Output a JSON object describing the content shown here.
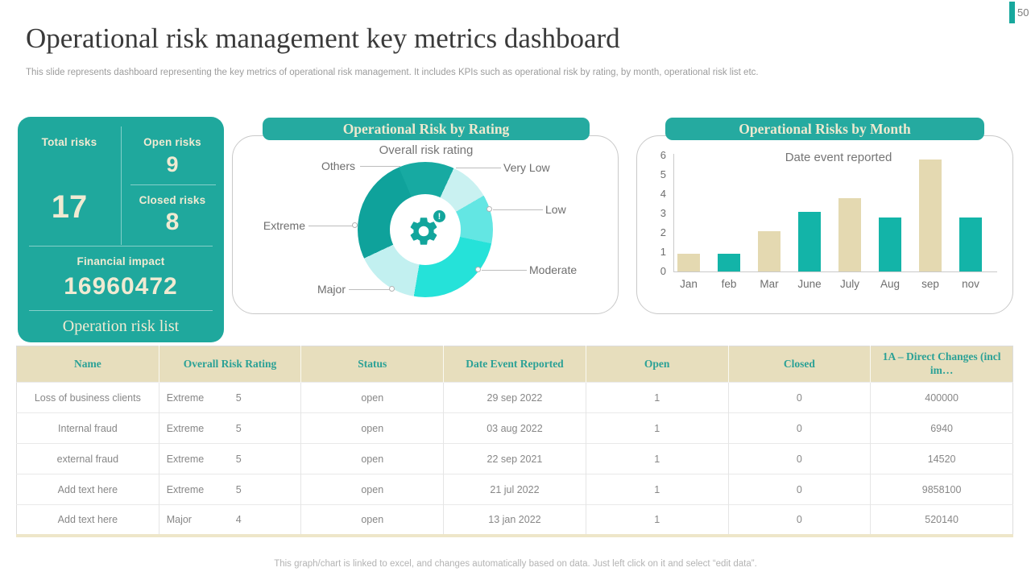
{
  "page": {
    "number": "50"
  },
  "header": {
    "title": "Operational risk management key metrics dashboard",
    "subtitle": "This slide represents dashboard representing the key metrics of operational risk management. It includes KPIs such as operational risk by rating, by month, operational risk list etc."
  },
  "kpi_panel": {
    "total_risks_label": "Total risks",
    "total_risks_value": "17",
    "open_risks_label": "Open risks",
    "open_risks_value": "9",
    "closed_risks_label": "Closed risks",
    "closed_risks_value": "8",
    "financial_impact_label": "Financial impact",
    "financial_impact_value": "16960472",
    "list_title": "Operation risk list"
  },
  "colors": {
    "teal": "#1fa89d",
    "band_teal": "#25aaa0",
    "cream": "#f0ead2",
    "table_header_bg": "#e7debd",
    "bar_beige": "#e4d9b1",
    "bar_teal": "#13b4a8"
  },
  "chart_data": [
    {
      "type": "pie",
      "title": "Operational Risk by Rating",
      "subtitle": "Overall risk rating",
      "legend_position": "callout-labels",
      "start_angle_deg": 337,
      "center_icon": "gear-alert-icon",
      "slices": [
        {
          "label": "Others",
          "percent": 13.3,
          "color": "#17aaa2"
        },
        {
          "label": "Very Low",
          "percent": 9.7,
          "color": "#c9f1f1"
        },
        {
          "label": "Low",
          "percent": 11.7,
          "color": "#63e6e3"
        },
        {
          "label": "Moderate",
          "percent": 24.4,
          "color": "#25e2d9"
        },
        {
          "label": "Major",
          "percent": 15.3,
          "color": "#c2f0f0"
        },
        {
          "label": "Extreme",
          "percent": 25.6,
          "color": "#0fa29b"
        }
      ]
    },
    {
      "type": "bar",
      "title": "Operational Risks by Month",
      "subtitle": "Date event reported",
      "categories": [
        "Jan",
        "feb",
        "Mar",
        "June",
        "July",
        "Aug",
        "sep",
        "nov"
      ],
      "values": [
        0.9,
        0.9,
        2.1,
        3.1,
        3.8,
        2.8,
        5.8,
        2.8
      ],
      "bar_colors": [
        "#e4d9b1",
        "#13b4a8",
        "#e4d9b1",
        "#13b4a8",
        "#e4d9b1",
        "#13b4a8",
        "#e4d9b1",
        "#13b4a8"
      ],
      "xlabel": "",
      "ylabel": "",
      "ylim": [
        0,
        6
      ],
      "yticks": [
        0,
        1,
        2,
        3,
        4,
        5,
        6
      ],
      "grid": false
    }
  ],
  "table": {
    "headers": [
      "Name",
      "Overall Risk Rating",
      "Status",
      "Date Event Reported",
      "Open",
      "Closed",
      "1A – Direct Changes (incl im…"
    ],
    "rows": [
      {
        "name": "Loss of business clients",
        "rating": "Extreme",
        "score": "5",
        "status": "open",
        "date": "29 sep 2022",
        "open": "1",
        "closed": "0",
        "direct_changes": "400000"
      },
      {
        "name": "Internal fraud",
        "rating": "Extreme",
        "score": "5",
        "status": "open",
        "date": "03 aug 2022",
        "open": "1",
        "closed": "0",
        "direct_changes": "6940"
      },
      {
        "name": "external fraud",
        "rating": "Extreme",
        "score": "5",
        "status": "open",
        "date": "22 sep 2021",
        "open": "1",
        "closed": "0",
        "direct_changes": "14520"
      },
      {
        "name": "Add text here",
        "rating": "Extreme",
        "score": "5",
        "status": "open",
        "date": "21 jul 2022",
        "open": "1",
        "closed": "0",
        "direct_changes": "9858100"
      },
      {
        "name": "Add text here",
        "rating": "Major",
        "score": "4",
        "status": "open",
        "date": "13 jan 2022",
        "open": "1",
        "closed": "0",
        "direct_changes": "520140"
      }
    ]
  },
  "footer": {
    "note": "This graph/chart is linked to excel, and changes automatically based on data. Just left click on it and select “edit data”."
  }
}
